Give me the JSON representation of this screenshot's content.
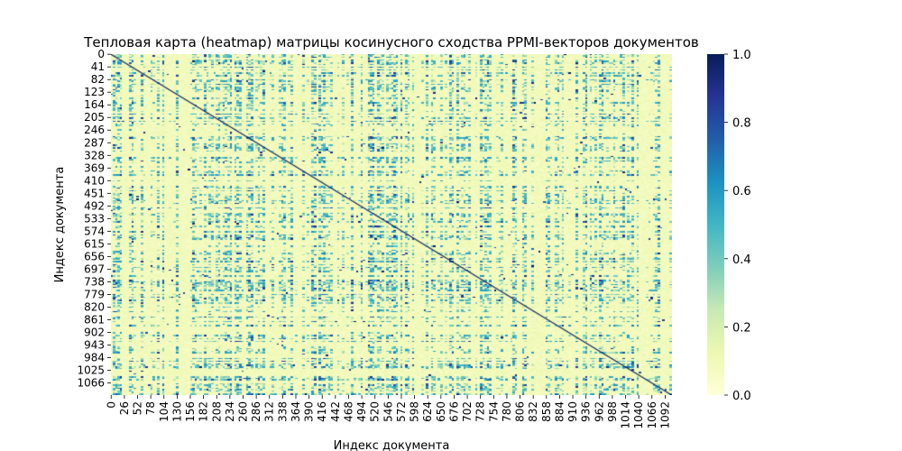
{
  "chart_data": {
    "type": "heatmap",
    "title": "Тепловая карта (heatmap) матрицы косинусного сходства PPMI-векторов документов",
    "xlabel": "Индекс документа",
    "ylabel": "Индекс документа",
    "n_documents": 1106,
    "x_ticks": [
      "0",
      "26",
      "52",
      "78",
      "104",
      "130",
      "156",
      "182",
      "208",
      "234",
      "260",
      "286",
      "312",
      "338",
      "364",
      "390",
      "416",
      "442",
      "468",
      "494",
      "520",
      "546",
      "572",
      "598",
      "624",
      "650",
      "676",
      "702",
      "728",
      "754",
      "780",
      "806",
      "832",
      "858",
      "884",
      "910",
      "936",
      "962",
      "988",
      "1014",
      "1040",
      "1066",
      "1092"
    ],
    "y_ticks": [
      "0",
      "41",
      "82",
      "123",
      "164",
      "205",
      "246",
      "287",
      "328",
      "369",
      "410",
      "451",
      "492",
      "533",
      "574",
      "615",
      "656",
      "697",
      "738",
      "779",
      "820",
      "861",
      "902",
      "943",
      "984",
      "1025",
      "1066"
    ],
    "value_range": [
      0,
      1
    ],
    "diagonal_value": 1.0,
    "colorbar": {
      "ticks": [
        "0.0",
        "0.2",
        "0.4",
        "0.6",
        "0.8",
        "1.0"
      ],
      "colormap": "YlGnBu",
      "colors": [
        "#ffffd9",
        "#edf8b1",
        "#c7e9b4",
        "#7fcdbb",
        "#41b6c4",
        "#1d91c0",
        "#225ea8",
        "#253494",
        "#081d58"
      ]
    },
    "grid": false,
    "legend": "colorbar-right"
  }
}
